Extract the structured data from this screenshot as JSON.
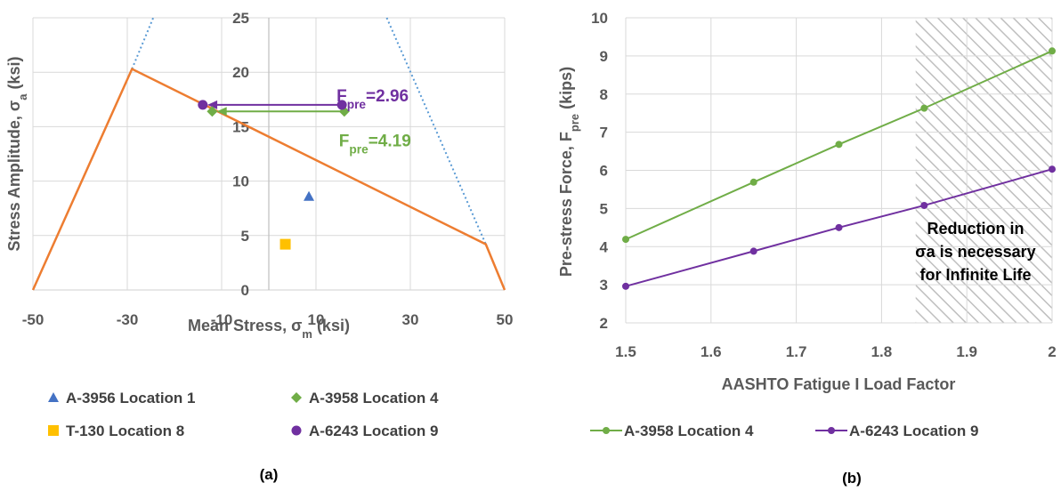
{
  "colors": {
    "orange": "#ED7D31",
    "blue_dotted": "#5B9BD5",
    "triangle": "#4472C4",
    "green": "#70AD47",
    "square": "#FFC000",
    "purple": "#7030A0",
    "grid": "#D9D9D9",
    "text": "#595959"
  },
  "chart_data": [
    {
      "type": "scatter",
      "panel_label": "(a)",
      "xlabel": {
        "main": "Mean Stress, σ",
        "sub": "m",
        "tail": " (ksi)"
      },
      "ylabel": {
        "main": "Stress Amplitude, σ",
        "sub": "a",
        "tail": " (ksi)"
      },
      "xlim": [
        -50,
        50
      ],
      "ylim": [
        0,
        25
      ],
      "xticks": [
        -50,
        -30,
        -10,
        10,
        30,
        50
      ],
      "yticks": [
        0,
        5,
        10,
        15,
        20,
        25
      ],
      "grid": true,
      "envelope": {
        "style": "solid",
        "color": "orange",
        "points": [
          [
            -50,
            0
          ],
          [
            -29,
            20.3
          ],
          [
            46,
            4.2
          ],
          [
            50,
            0
          ]
        ]
      },
      "yield_lines": {
        "style": "dotted",
        "color": "blue_dotted",
        "lines": [
          [
            [
              -29,
              20.3
            ],
            [
              -24.5,
              25
            ]
          ],
          [
            [
              25,
              25
            ],
            [
              46,
              4.2
            ]
          ]
        ]
      },
      "series": [
        {
          "name": "A-3956 Location 1",
          "marker": "triangle",
          "color": "triangle",
          "points": [
            [
              8.5,
              8.6
            ]
          ]
        },
        {
          "name": "A-3958 Location 4",
          "marker": "diamond",
          "color": "green",
          "points": [
            [
              -12,
              16.4
            ],
            [
              16,
              16.4
            ]
          ]
        },
        {
          "name": "T-130 Location 8",
          "marker": "square",
          "color": "square",
          "points": [
            [
              3.5,
              4.2
            ]
          ]
        },
        {
          "name": "A-6243 Location 9",
          "marker": "circle",
          "color": "purple",
          "points": [
            [
              -14,
              17.0
            ],
            [
              15.5,
              17.0
            ]
          ]
        }
      ],
      "arrows": [
        {
          "color": "purple",
          "from": [
            15.5,
            17.0
          ],
          "to": [
            -13,
            17.0
          ],
          "label": {
            "main": "F",
            "sub": "pre",
            "tail": "=2.96"
          }
        },
        {
          "color": "green",
          "from": [
            16,
            16.4
          ],
          "to": [
            -11,
            16.4
          ],
          "label": {
            "main": "F",
            "sub": "pre",
            "tail": "=4.19"
          }
        }
      ]
    },
    {
      "type": "line",
      "panel_label": "(b)",
      "xlabel": "AASHTO Fatigue I Load Factor",
      "ylabel": {
        "main": "Pre-stress Force, F",
        "sub": "pre",
        "tail": " (kips)"
      },
      "xlim": [
        1.5,
        2
      ],
      "ylim": [
        2,
        10
      ],
      "xticks": [
        1.5,
        1.6,
        1.7,
        1.8,
        1.9,
        2
      ],
      "yticks": [
        2,
        3,
        4,
        5,
        6,
        7,
        8,
        9,
        10
      ],
      "grid": true,
      "x": [
        1.5,
        1.65,
        1.75,
        1.85,
        2.0
      ],
      "series": [
        {
          "name": "A-3958 Location 4",
          "color": "green",
          "values": [
            4.19,
            5.69,
            6.68,
            7.63,
            9.13
          ]
        },
        {
          "name": "A-6243 Location 9",
          "color": "purple",
          "values": [
            2.96,
            3.88,
            4.5,
            5.08,
            6.03
          ]
        }
      ],
      "hatched_region": {
        "x_from": 1.84,
        "x_to": 2.0
      },
      "annotation_lines": [
        "Reduction in",
        "σa is necessary",
        "for Infinite Life"
      ]
    }
  ]
}
